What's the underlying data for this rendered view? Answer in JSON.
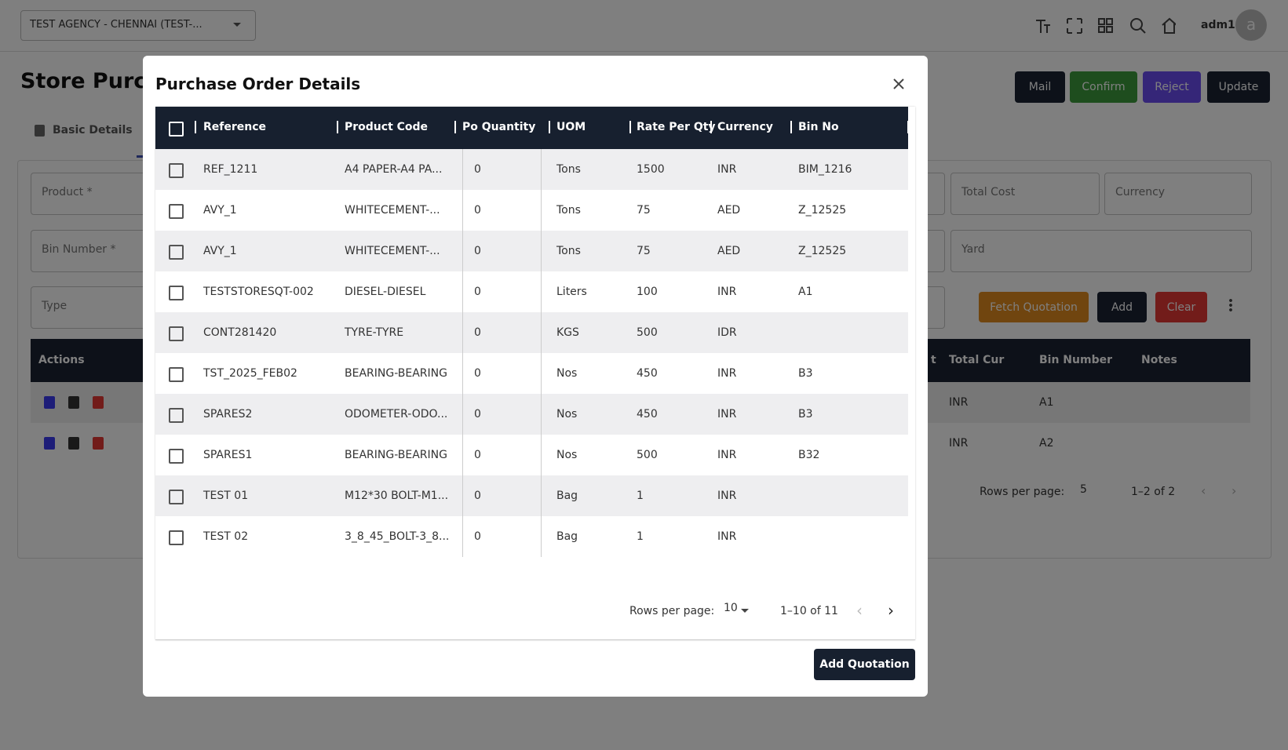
{
  "topbar": {
    "agency": "TEST AGENCY - CHENNAI  (TEST-...",
    "user": "adm1",
    "avatar": "a"
  },
  "page": {
    "title": "Store Purch",
    "actions": [
      "Mail",
      "Confirm",
      "Reject",
      "Update"
    ],
    "tab": "Basic Details",
    "fields": [
      "Product *",
      "Bin Number *",
      "Type",
      "Total Cost",
      "Currency",
      "Yard"
    ],
    "form_buttons": [
      "Fetch Quotation",
      "Add",
      "Clear"
    ],
    "table": {
      "headers": [
        "Actions",
        "t",
        "Total Cur",
        "Bin Number",
        "Notes"
      ],
      "rows": [
        [
          "INR",
          "A1"
        ],
        [
          "INR",
          "A2"
        ]
      ],
      "rows_per_page_label": "Rows per page:",
      "rows_per_page": 5,
      "range": "1–2 of 2"
    }
  },
  "modal": {
    "title": "Purchase Order Details",
    "headers": [
      "Reference",
      "Product Code",
      "Po Quantity",
      "UOM",
      "Rate Per Qty",
      "Currency",
      "Bin No"
    ],
    "rows": [
      [
        "REF_1211",
        "A4 PAPER-A4 PA...",
        0,
        "Tons",
        1500,
        "INR",
        "BIM_1216"
      ],
      [
        "AVY_1",
        "WHITECEMENT-...",
        0,
        "Tons",
        75,
        "AED",
        "Z_12525"
      ],
      [
        "AVY_1",
        "WHITECEMENT-...",
        0,
        "Tons",
        75,
        "AED",
        "Z_12525"
      ],
      [
        "TESTSTORESQT-002",
        "DIESEL-DIESEL",
        0,
        "Liters",
        100,
        "INR",
        "A1"
      ],
      [
        "CONT281420",
        "TYRE-TYRE",
        0,
        "KGS",
        500,
        "IDR",
        null
      ],
      [
        "TST_2025_FEB02",
        "BEARING-BEARING",
        0,
        "Nos",
        450,
        "INR",
        "B3"
      ],
      [
        "SPARES2",
        "ODOMETER-ODO...",
        0,
        "Nos",
        450,
        "INR",
        "B3"
      ],
      [
        "SPARES1",
        "BEARING-BEARING",
        0,
        "Nos",
        500,
        "INR",
        "B32"
      ],
      [
        "TEST 01",
        "M12*30 BOLT-M1...",
        0,
        "Bag",
        1,
        "INR",
        null
      ],
      [
        "TEST 02",
        "3_8_45_BOLT-3_8...",
        0,
        "Bag",
        1,
        "INR",
        null
      ]
    ],
    "rows_per_page_label": "Rows per page:",
    "rows_per_page": 10,
    "range": "1–10 of 11",
    "button": "Add Quotation"
  }
}
